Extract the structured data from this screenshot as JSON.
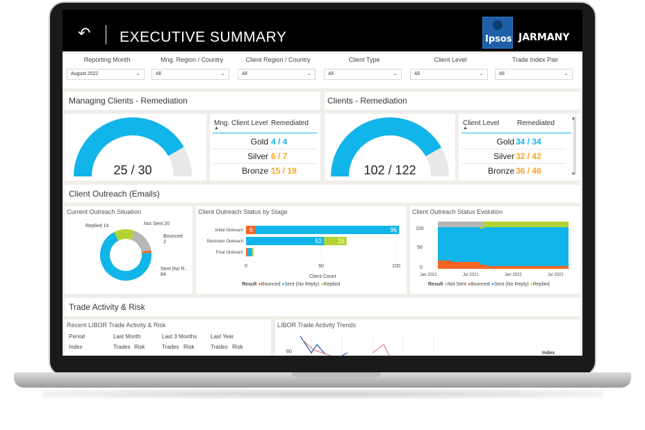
{
  "header": {
    "back_icon": "back-arrow-icon",
    "title": "EXECUTIVE SUMMARY",
    "logo_text": "Ipsos",
    "brand": "JARMANY"
  },
  "filters": [
    {
      "label": "Reporting Month",
      "value": "August 2022"
    },
    {
      "label": "Mng. Region / Country",
      "value": "All"
    },
    {
      "label": "Client Region / Country",
      "value": "All"
    },
    {
      "label": "Client Type",
      "value": "All"
    },
    {
      "label": "Client Level",
      "value": "All"
    },
    {
      "label": "Trade Index Pair",
      "value": "All"
    }
  ],
  "managing": {
    "title": "Managing Clients - Remediation",
    "gauge_label": "25 / 30",
    "gauge_value": 25,
    "gauge_max": 30,
    "col1": "Mng. Client Level",
    "col2": "Remediated",
    "rows": [
      {
        "level": "Gold",
        "value": "4 / 4"
      },
      {
        "level": "Silver",
        "value": "6 / 7"
      },
      {
        "level": "Bronze",
        "value": "15 / 19"
      }
    ]
  },
  "clients": {
    "title": "Clients - Remediation",
    "gauge_label": "102 / 122",
    "gauge_value": 102,
    "gauge_max": 122,
    "col1": "Client Level",
    "col2": "Remediated",
    "rows": [
      {
        "level": "Gold",
        "value": "34 / 34"
      },
      {
        "level": "Silver",
        "value": "32 / 42"
      },
      {
        "level": "Bronze",
        "value": "36 / 46"
      }
    ]
  },
  "outreach": {
    "title": "Client Outreach (Emails)",
    "situation_title": "Current Outreach Situation",
    "donut": [
      {
        "name": "Replied",
        "label": "Replied 16",
        "value": 16,
        "color": "#b3d334"
      },
      {
        "name": "Not Sent",
        "label": "Not Sent 20",
        "value": 20,
        "color": "#b6b6b6"
      },
      {
        "name": "Bounced",
        "label": "Bounced",
        "label2": "2",
        "value": 2,
        "color": "#f26522"
      },
      {
        "name": "Sent (No Reply)",
        "label": "Sent (No R..",
        "label2": "84",
        "value": 84,
        "color": "#12b5e9"
      }
    ],
    "stage_title": "Client Outreach Status by Stage",
    "stage_x_label": "Client Count",
    "stage_ticks": [
      "0",
      "50",
      "100"
    ],
    "evolution_title": "Client Outreach Status Evolution",
    "evolution_y_ticks": [
      "100",
      "50",
      "0"
    ],
    "evolution_x_ticks": [
      "Jan 2021",
      "Jul 2021",
      "Jan 2022",
      "Jul 2022"
    ],
    "legend1": {
      "title": "Result",
      "items": [
        "Bounced",
        "Sent (No Reply)",
        "Replied"
      ]
    },
    "legend2": {
      "title": "Result",
      "items": [
        "Not Sent",
        "Bounced",
        "Sent (No Reply)",
        "Replied"
      ]
    }
  },
  "chart_data": [
    {
      "type": "bar",
      "title": "Client Outreach Status by Stage",
      "xlabel": "Client Count",
      "categories": [
        "Initial Outreach",
        "Reminder Outreach",
        "Final Outreach"
      ],
      "series": [
        {
          "name": "Bounced",
          "values": [
            6,
            0,
            1
          ]
        },
        {
          "name": "Sent (No Reply)",
          "values": [
            96,
            52,
            3
          ]
        },
        {
          "name": "Replied",
          "values": [
            0,
            15,
            1
          ]
        }
      ],
      "xlim": [
        0,
        100
      ]
    },
    {
      "type": "area",
      "title": "Client Outreach Status Evolution",
      "x": [
        "Jan 2021",
        "Jul 2021",
        "Jan 2022",
        "Jul 2022"
      ],
      "ylim": [
        0,
        100
      ]
    }
  ],
  "trade": {
    "title": "Trade Activity & Risk",
    "recent_title": "Recent LIBOR Trade Activity & Risk",
    "period": "Period",
    "index": "Index",
    "groups": [
      {
        "name": "Last Month",
        "c1": "Trades",
        "c2": "Risk"
      },
      {
        "name": "Last 3 Months",
        "c1": "Trades",
        "c2": "Risk"
      },
      {
        "name": "Last Year",
        "c1": "Trades",
        "c2": "Risk"
      }
    ],
    "trends_title": "LIBOR Trade Activity Trends",
    "trends_tick": "60",
    "trends_legend": "Index"
  }
}
